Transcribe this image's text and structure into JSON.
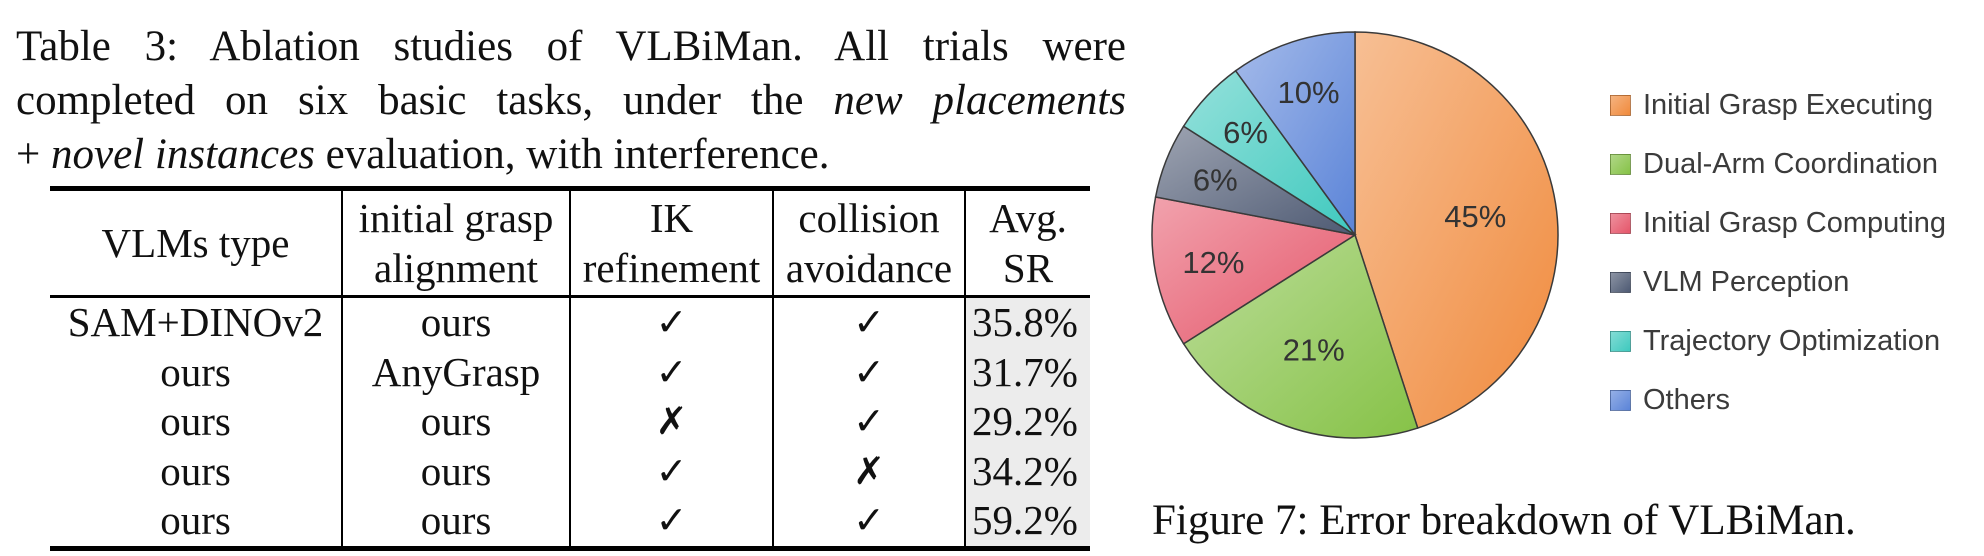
{
  "table_caption": {
    "line1": "Table 3: Ablation studies of VLBiMan. All trials were",
    "line2_a": "completed on six basic tasks, under the ",
    "line2_italic": "new placements",
    "line3_a": "+ ",
    "line3_italic": "novel instances",
    "line3_b": " evaluation, with interference."
  },
  "table": {
    "headers": [
      {
        "line1": "VLMs type",
        "line2": ""
      },
      {
        "line1": "initial grasp",
        "line2": "alignment"
      },
      {
        "line1": "IK",
        "line2": "refinement"
      },
      {
        "line1": "collision",
        "line2": "avoidance"
      },
      {
        "line1": "Avg.",
        "line2": "SR"
      }
    ],
    "rows": [
      [
        "SAM+DINOv2",
        "ours",
        "✓",
        "✓",
        "35.8%"
      ],
      [
        "ours",
        "AnyGrasp",
        "✓",
        "✓",
        "31.7%"
      ],
      [
        "ours",
        "ours",
        "✗",
        "✓",
        "29.2%"
      ],
      [
        "ours",
        "ours",
        "✓",
        "✗",
        "34.2%"
      ],
      [
        "ours",
        "ours",
        "✓",
        "✓",
        "59.2%"
      ]
    ]
  },
  "chart_data": {
    "type": "pie",
    "categories": [
      "Initial Grasp Executing",
      "Dual-Arm Coordination",
      "Initial Grasp Computing",
      "VLM Perception",
      "Trajectory Optimization",
      "Others"
    ],
    "values": [
      45,
      21,
      12,
      6,
      6,
      10
    ],
    "labels": [
      "45%",
      "21%",
      "12%",
      "6%",
      "6%",
      "10%"
    ],
    "colors": [
      "#f08a3c",
      "#86c247",
      "#e5566a",
      "#4e5a73",
      "#3fc9be",
      "#5b84d8"
    ],
    "legend": "right",
    "start": "top, clockwise"
  },
  "figure_caption": "Figure 7: Error breakdown of VLBiMan."
}
